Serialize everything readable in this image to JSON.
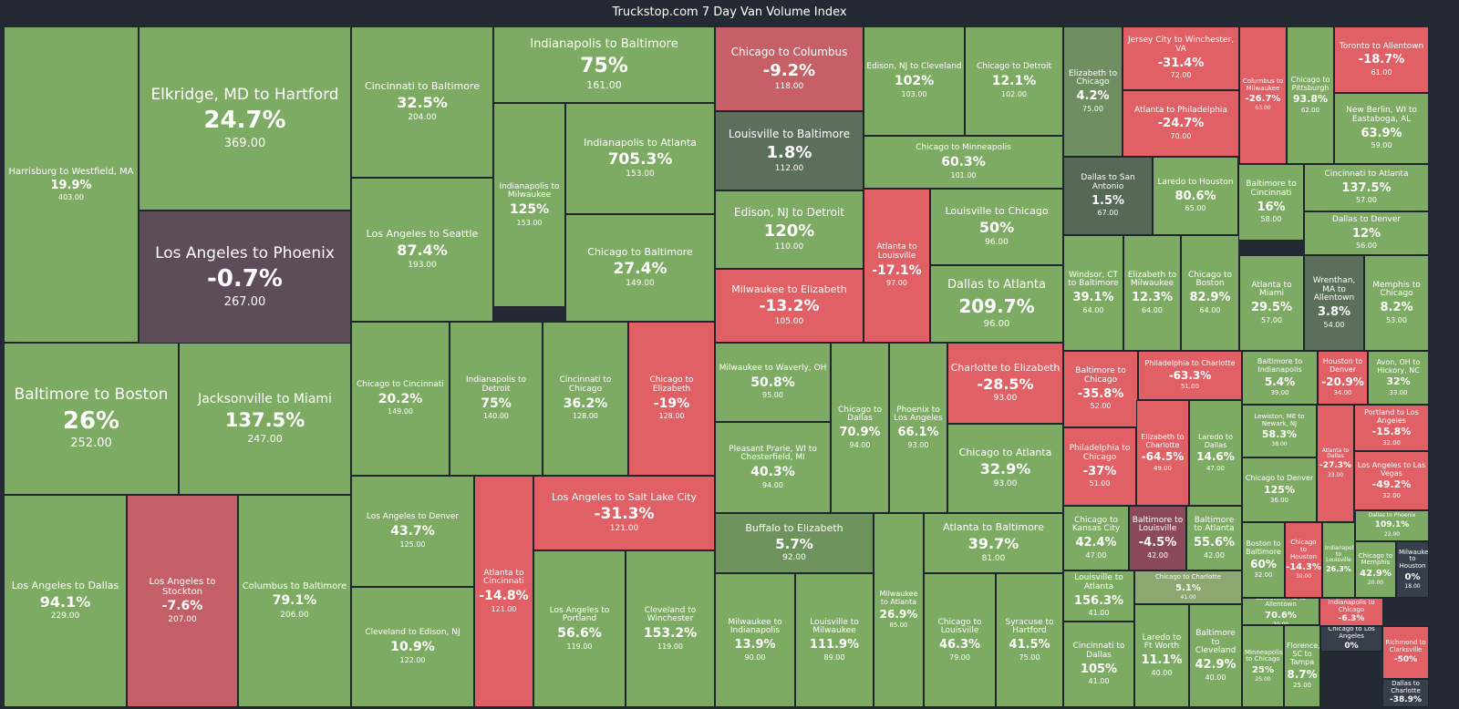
{
  "title": "Truckstop.com 7 Day Van Volume Index",
  "colors": {
    "positive": "#7eab63",
    "negative": "#e06065",
    "neutral": "#5b6f5a",
    "slight_negative": "#5f4c5b",
    "border": "#1f252c"
  },
  "chart_data": {
    "type": "treemap",
    "title": "Truckstop.com 7 Day Van Volume Index",
    "value_label": "load volume index",
    "change_label": "7 day % change",
    "lanes": [
      {
        "name": "Harrisburg to Westfield, MA",
        "change": "19.9%",
        "value": "403.00"
      },
      {
        "name": "Elkridge, MD to Hartford",
        "change": "24.7%",
        "value": "369.00"
      },
      {
        "name": "Los Angeles to Phoenix",
        "change": "-0.7%",
        "value": "267.00"
      },
      {
        "name": "Baltimore to Boston",
        "change": "26%",
        "value": "252.00"
      },
      {
        "name": "Jacksonville to Miami",
        "change": "137.5%",
        "value": "247.00"
      },
      {
        "name": "Los Angeles to Dallas",
        "change": "94.1%",
        "value": "229.00"
      },
      {
        "name": "Los Angeles to Stockton",
        "change": "-7.6%",
        "value": "207.00"
      },
      {
        "name": "Columbus to Baltimore",
        "change": "79.1%",
        "value": "206.00"
      },
      {
        "name": "Cincinnati to Baltimore",
        "change": "32.5%",
        "value": "204.00"
      },
      {
        "name": "Los Angeles to Seattle",
        "change": "87.4%",
        "value": "193.00"
      },
      {
        "name": "Chicago to Cincinnati",
        "change": "20.2%",
        "value": "149.00"
      },
      {
        "name": "Indianapolis to Detroit",
        "change": "75%",
        "value": "140.00"
      },
      {
        "name": "Cincinnati to Chicago",
        "change": "36.2%",
        "value": "128.00"
      },
      {
        "name": "Chicago to Elizabeth",
        "change": "-19%",
        "value": "128.00"
      },
      {
        "name": "Los Angeles to Denver",
        "change": "43.7%",
        "value": "125.00"
      },
      {
        "name": "Cleveland to Edison, NJ",
        "change": "10.9%",
        "value": "122.00"
      },
      {
        "name": "Atlanta to Cincinnati",
        "change": "-14.8%",
        "value": "121.00"
      },
      {
        "name": "Indianapolis to Baltimore",
        "change": "75%",
        "value": "161.00"
      },
      {
        "name": "Indianapolis to Milwaukee",
        "change": "125%",
        "value": "153.00"
      },
      {
        "name": "Indianapolis to Atlanta",
        "change": "705.3%",
        "value": "153.00"
      },
      {
        "name": "Chicago to Baltimore",
        "change": "27.4%",
        "value": "149.00"
      },
      {
        "name": "Los Angeles to Salt Lake City",
        "change": "-31.3%",
        "value": "121.00"
      },
      {
        "name": "Los Angeles to Portland",
        "change": "56.6%",
        "value": "119.00"
      },
      {
        "name": "Cleveland to Winchester",
        "change": "153.2%",
        "value": "119.00"
      },
      {
        "name": "Chicago to Columbus",
        "change": "-9.2%",
        "value": "118.00"
      },
      {
        "name": "Louisville to Baltimore",
        "change": "1.8%",
        "value": "112.00"
      },
      {
        "name": "Edison, NJ to Detroit",
        "change": "120%",
        "value": "110.00"
      },
      {
        "name": "Milwaukee to Elizabeth",
        "change": "-13.2%",
        "value": "105.00"
      },
      {
        "name": "Milwaukee to Waverly, OH",
        "change": "50.8%",
        "value": "95.00"
      },
      {
        "name": "Pleasant Prarie, WI to Chesterfield, MI",
        "change": "40.3%",
        "value": "94.00"
      },
      {
        "name": "Buffalo to Elizabeth",
        "change": "5.7%",
        "value": "92.00"
      },
      {
        "name": "Milwaukee to Indianapolis",
        "change": "13.9%",
        "value": "90.00"
      },
      {
        "name": "Louisville to Milwaukee",
        "change": "111.9%",
        "value": "89.00"
      },
      {
        "name": "Chicago to Dallas",
        "change": "70.9%",
        "value": "94.00"
      },
      {
        "name": "Phoenix to Los Angeles",
        "change": "66.1%",
        "value": "93.00"
      },
      {
        "name": "Milwaukee to Atlanta",
        "change": "26.9%",
        "value": "85.00"
      },
      {
        "name": "Edison, NJ to Cleveland",
        "change": "102%",
        "value": "103.00"
      },
      {
        "name": "Chicago to Detroit",
        "change": "12.1%",
        "value": "102.00"
      },
      {
        "name": "Chicago to Minneapolis",
        "change": "60.3%",
        "value": "101.00"
      },
      {
        "name": "Atlanta to Louisville",
        "change": "-17.1%",
        "value": "97.00"
      },
      {
        "name": "Louisville to Chicago",
        "change": "50%",
        "value": "96.00"
      },
      {
        "name": "Dallas to Atlanta",
        "change": "209.7%",
        "value": "96.00"
      },
      {
        "name": "Charlotte to Elizabeth",
        "change": "-28.5%",
        "value": "93.00"
      },
      {
        "name": "Chicago to Atlanta",
        "change": "32.9%",
        "value": "93.00"
      },
      {
        "name": "Atlanta to Baltimore",
        "change": "39.7%",
        "value": "81.00"
      },
      {
        "name": "Chicago to Louisville",
        "change": "46.3%",
        "value": "79.00"
      },
      {
        "name": "Syracuse to Hartford",
        "change": "41.5%",
        "value": "75.00"
      },
      {
        "name": "Elizabeth to Chicago",
        "change": "4.2%",
        "value": "75.00"
      },
      {
        "name": "Jersey City to Winchester, VA",
        "change": "-31.4%",
        "value": "72.00"
      },
      {
        "name": "Atlanta to Philadelphia",
        "change": "-24.7%",
        "value": "70.00"
      },
      {
        "name": "Columbus to Milwaukee",
        "change": "-26.7%",
        "value": "63.00"
      },
      {
        "name": "Chicago to Pittsburgh",
        "change": "93.8%",
        "value": "62.00"
      },
      {
        "name": "Toronto to Allentown",
        "change": "-18.7%",
        "value": "61.00"
      },
      {
        "name": "New Berlin, WI to Eastaboga, AL",
        "change": "63.9%",
        "value": "59.00"
      },
      {
        "name": "Dallas to San Antonio",
        "change": "1.5%",
        "value": "67.00"
      },
      {
        "name": "Laredo to Houston",
        "change": "80.6%",
        "value": "65.00"
      },
      {
        "name": "Baltimore to Cincinnati",
        "change": "16%",
        "value": "58.00"
      },
      {
        "name": "Cincinnati to Atlanta",
        "change": "137.5%",
        "value": "57.00"
      },
      {
        "name": "Dallas to Denver",
        "change": "12%",
        "value": "56.00"
      },
      {
        "name": "Windsor, CT to Baltimore",
        "change": "39.1%",
        "value": "64.00"
      },
      {
        "name": "Elizabeth to Milwaukee",
        "change": "12.3%",
        "value": "64.00"
      },
      {
        "name": "Chicago to Boston",
        "change": "82.9%",
        "value": "64.00"
      },
      {
        "name": "Atlanta to Miami",
        "change": "29.5%",
        "value": "57.00"
      },
      {
        "name": "Wrenthan, MA to Allentown",
        "change": "3.8%",
        "value": "54.00"
      },
      {
        "name": "Memphis to Chicago",
        "change": "8.2%",
        "value": "53.00"
      },
      {
        "name": "Baltimore to Chicago",
        "change": "-35.8%",
        "value": "52.00"
      },
      {
        "name": "Philadelphia to Charlotte",
        "change": "-63.3%",
        "value": "51.00"
      },
      {
        "name": "Baltimore to Indianapolis",
        "change": "5.4%",
        "value": "39.00"
      },
      {
        "name": "Houston to Denver",
        "change": "-20.9%",
        "value": "34.00"
      },
      {
        "name": "Avon, OH to Hickory, NC",
        "change": "32%",
        "value": "33.00"
      },
      {
        "name": "Philadelphia to Chicago",
        "change": "-37%",
        "value": "51.00"
      },
      {
        "name": "Elizabeth to Charlotte",
        "change": "-64.5%",
        "value": "49.00"
      },
      {
        "name": "Laredo to Dallas",
        "change": "14.6%",
        "value": "47.00"
      },
      {
        "name": "Lewiston, ME to Newark, NJ",
        "change": "58.3%",
        "value": "38.00"
      },
      {
        "name": "Atlanta to Dallas",
        "change": "-27.3%",
        "value": "33.00"
      },
      {
        "name": "Portland to Los Angeles",
        "change": "-15.8%",
        "value": "32.00"
      },
      {
        "name": "Chicago to Denver",
        "change": "125%",
        "value": "36.00"
      },
      {
        "name": "Los Angeles to Las Vegas",
        "change": "-49.2%",
        "value": "32.00"
      },
      {
        "name": "Chicago to Kansas City",
        "change": "42.4%",
        "value": "47.00"
      },
      {
        "name": "Baltimore to Louisville",
        "change": "-4.5%",
        "value": "42.00"
      },
      {
        "name": "Baltimore to Atlanta",
        "change": "55.6%",
        "value": "42.00"
      },
      {
        "name": "Boston to Baltimore",
        "change": "60%",
        "value": "32.00"
      },
      {
        "name": "Chicago to Houston",
        "change": "-14.3%",
        "value": "30.00"
      },
      {
        "name": "Indianapolis to Louisville",
        "change": "26.3%",
        "value": ""
      },
      {
        "name": "Dallas to Phoenix",
        "change": "109.1%",
        "value": "22.00"
      },
      {
        "name": "Chicago to Memphis",
        "change": "42.9%",
        "value": "20.00"
      },
      {
        "name": "Milwaukee to Houston",
        "change": "0%",
        "value": "18.00"
      },
      {
        "name": "Louisville to Atlanta",
        "change": "156.3%",
        "value": "41.00"
      },
      {
        "name": "Chicago to Charlotte",
        "change": "5.1%",
        "value": "41.00"
      },
      {
        "name": "Lewiston, ME to Allentown",
        "change": "70.6%",
        "value": "29.00"
      },
      {
        "name": "Indianapolis to Chicago",
        "change": "-6.3%",
        "value": ""
      },
      {
        "name": "Cincinnati to Dallas",
        "change": "105%",
        "value": "41.00"
      },
      {
        "name": "Laredo to Ft Worth",
        "change": "11.1%",
        "value": "40.00"
      },
      {
        "name": "Baltimore to Cleveland",
        "change": "42.9%",
        "value": "40.00"
      },
      {
        "name": "Minneapolis to Chicago",
        "change": "25%",
        "value": "25.00"
      },
      {
        "name": "Florence, SC to Tampa",
        "change": "8.7%",
        "value": "25.00"
      },
      {
        "name": "Chicago to Los Angeles",
        "change": "0%",
        "value": ""
      },
      {
        "name": "Richmond to Clarksville",
        "change": "-50%",
        "value": ""
      },
      {
        "name": "Dallas to Charlotte",
        "change": "-38.9%",
        "value": ""
      }
    ]
  }
}
